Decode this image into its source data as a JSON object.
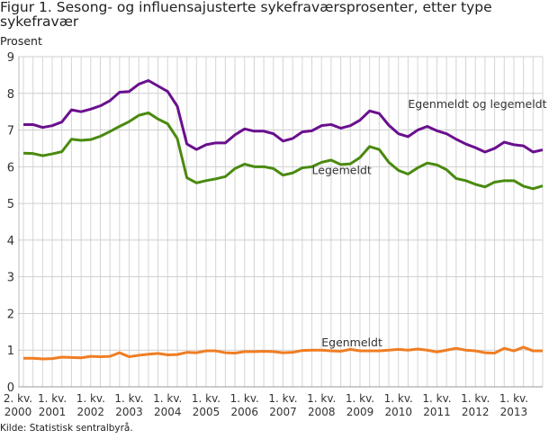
{
  "chart_data": {
    "type": "line",
    "title": "Figur 1. Sesong- og influensajusterte sykefraværsprosenter, etter type sykefravær",
    "ylabel": "Prosent",
    "xlabel": "",
    "ylim": [
      0,
      9
    ],
    "yticks": [
      "0",
      "1",
      "2",
      "3",
      "4",
      "5",
      "6",
      "7",
      "8",
      "9"
    ],
    "grid": true,
    "x_start": "2. kv. 2000",
    "x_end": "4. kv. 2013",
    "xtick_labels": [
      {
        "index": 0,
        "line1": "2. kv.",
        "line2": "2000"
      },
      {
        "index": 3,
        "line1": "1. kv.",
        "line2": "2001"
      },
      {
        "index": 7,
        "line1": "1. kv.",
        "line2": "2002"
      },
      {
        "index": 11,
        "line1": "1. kv.",
        "line2": "2003"
      },
      {
        "index": 15,
        "line1": "1. kv.",
        "line2": "2004"
      },
      {
        "index": 19,
        "line1": "1. kv.",
        "line2": "2005"
      },
      {
        "index": 23,
        "line1": "1. kv.",
        "line2": "2006"
      },
      {
        "index": 27,
        "line1": "1. kv.",
        "line2": "2007"
      },
      {
        "index": 31,
        "line1": "1. kv.",
        "line2": "2008"
      },
      {
        "index": 35,
        "line1": "1. kv.",
        "line2": "2009"
      },
      {
        "index": 39,
        "line1": "1. kv.",
        "line2": "2010"
      },
      {
        "index": 43,
        "line1": "1. kv.",
        "line2": "2011"
      },
      {
        "index": 47,
        "line1": "1. kv.",
        "line2": "2012"
      },
      {
        "index": 51,
        "line1": "1. kv.",
        "line2": "2013"
      }
    ],
    "series": [
      {
        "name": "Egenmeldt og legemeldt",
        "color": "#6a0f8e",
        "label_at": [
          7.6,
          40
        ],
        "values": [
          7.15,
          7.15,
          7.07,
          7.12,
          7.22,
          7.55,
          7.5,
          7.57,
          7.66,
          7.8,
          8.03,
          8.05,
          8.25,
          8.35,
          8.2,
          8.05,
          7.65,
          6.62,
          6.47,
          6.6,
          6.65,
          6.65,
          6.87,
          7.03,
          6.97,
          6.97,
          6.9,
          6.7,
          6.77,
          6.95,
          6.98,
          7.12,
          7.15,
          7.05,
          7.12,
          7.27,
          7.52,
          7.45,
          7.13,
          6.9,
          6.82,
          7.0,
          7.1,
          6.98,
          6.9,
          6.75,
          6.62,
          6.52,
          6.4,
          6.5,
          6.67,
          6.6,
          6.57,
          6.4,
          6.46
        ]
      },
      {
        "name": "Legemeldt",
        "color": "#4a8a0f",
        "label_at": [
          5.8,
          30
        ],
        "values": [
          6.37,
          6.36,
          6.3,
          6.35,
          6.41,
          6.75,
          6.72,
          6.74,
          6.83,
          6.96,
          7.1,
          7.23,
          7.4,
          7.47,
          7.3,
          7.17,
          6.77,
          5.7,
          5.56,
          5.62,
          5.67,
          5.73,
          5.95,
          6.07,
          6.0,
          6.0,
          5.95,
          5.77,
          5.83,
          5.97,
          6.0,
          6.12,
          6.18,
          6.06,
          6.08,
          6.25,
          6.55,
          6.47,
          6.12,
          5.9,
          5.8,
          5.97,
          6.1,
          6.05,
          5.92,
          5.68,
          5.62,
          5.52,
          5.45,
          5.58,
          5.62,
          5.62,
          5.47,
          5.4,
          5.48
        ]
      },
      {
        "name": "Egenmeldt",
        "color": "#f07d22",
        "label_at": [
          1.1,
          31
        ],
        "values": [
          0.78,
          0.78,
          0.76,
          0.77,
          0.81,
          0.8,
          0.79,
          0.83,
          0.82,
          0.83,
          0.93,
          0.82,
          0.86,
          0.89,
          0.91,
          0.87,
          0.88,
          0.94,
          0.93,
          0.98,
          0.98,
          0.93,
          0.92,
          0.96,
          0.96,
          0.97,
          0.96,
          0.93,
          0.94,
          0.99,
          1.0,
          1.0,
          0.98,
          0.97,
          1.02,
          0.98,
          0.98,
          0.98,
          1.0,
          1.02,
          1.0,
          1.03,
          1.0,
          0.95,
          1.0,
          1.05,
          1.0,
          0.98,
          0.93,
          0.92,
          1.05,
          0.98,
          1.08,
          0.98,
          0.98
        ]
      }
    ]
  },
  "source": "Kilde: Statistisk sentralbyrå."
}
